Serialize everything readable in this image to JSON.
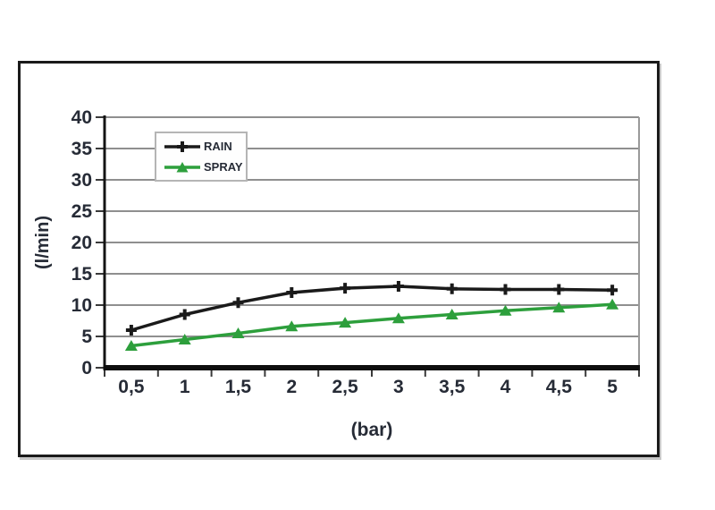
{
  "page": {
    "background": "#ffffff"
  },
  "frame": {
    "border_color": "#1a1a1a"
  },
  "chart_data": {
    "type": "line",
    "x": [
      0.5,
      1,
      1.5,
      2,
      2.5,
      3,
      3.5,
      4,
      4.5,
      5
    ],
    "x_tick_labels": [
      "0,5",
      "1",
      "1,5",
      "2",
      "2,5",
      "3",
      "3,5",
      "4",
      "4,5",
      "5"
    ],
    "xlabel": "(bar)",
    "ylabel": "(l/min)",
    "ylim": [
      0,
      40
    ],
    "yticks": [
      0,
      5,
      10,
      15,
      20,
      25,
      30,
      35,
      40
    ],
    "grid": true,
    "legend_position": "top-left-inside",
    "series": [
      {
        "name": "RAIN",
        "color": "#1a1a1a",
        "marker": "plus",
        "values": [
          6.0,
          8.5,
          10.4,
          12.0,
          12.7,
          13.0,
          12.6,
          12.5,
          12.5,
          12.4
        ]
      },
      {
        "name": "SPRAY",
        "color": "#2d9f3c",
        "marker": "triangle",
        "values": [
          3.5,
          4.5,
          5.5,
          6.6,
          7.2,
          7.9,
          8.5,
          9.1,
          9.6,
          10.1
        ]
      }
    ],
    "styles": {
      "grid_color": "#8f8f8f",
      "axis_color": "#141414",
      "tick_color": "#3a3a3a",
      "text_color": "#262b36",
      "plot_right_border_color": "#9a9a9a",
      "legend_border_color": "#b5b5b5"
    }
  }
}
